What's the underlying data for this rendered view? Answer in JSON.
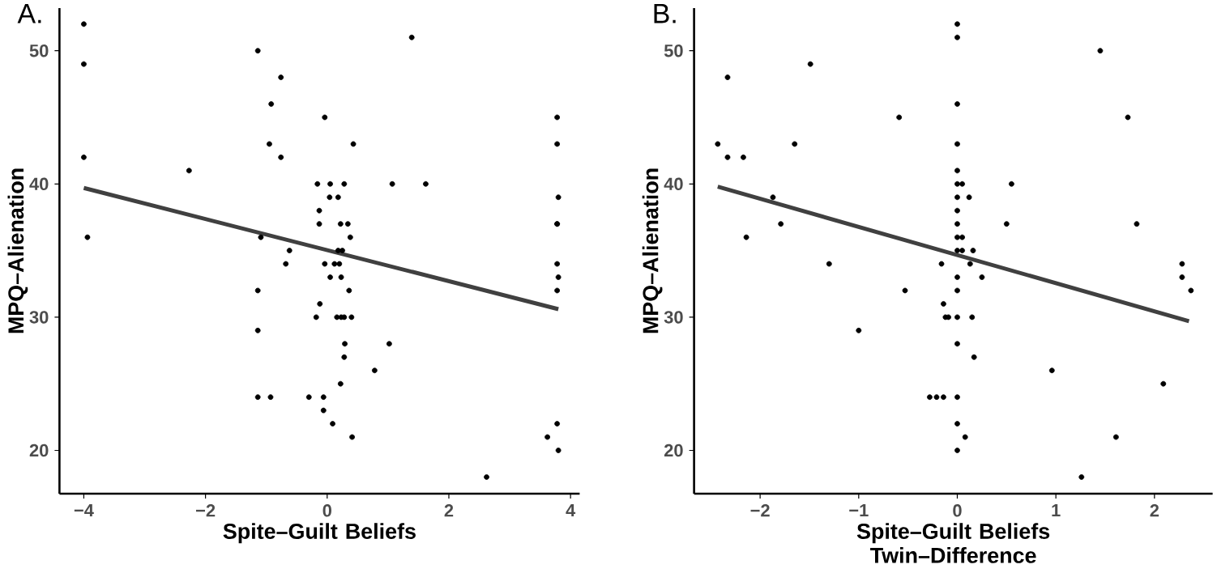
{
  "chart_data": [
    {
      "type": "scatter",
      "title": "A.",
      "xlabel": "Spite–Guilt Beliefs",
      "ylabel": "MPQ–Alienation",
      "xlim": [
        -4.4,
        4.15
      ],
      "ylim": [
        16.75,
        53.2
      ],
      "xticks": [
        {
          "value": -4,
          "label": "−4"
        },
        {
          "value": -2,
          "label": "−2"
        },
        0,
        2,
        4
      ],
      "yticks": [
        20,
        30,
        40,
        50
      ],
      "series": [
        {
          "type": "scatter",
          "marker": "circle",
          "color": "#000000",
          "x": [
            -4,
            -4,
            -4,
            -3.94,
            -2.27,
            -1.14,
            -0.76,
            -0.92,
            -0.95,
            -0.76,
            -1.09,
            -0.62,
            -0.68,
            -1.14,
            -1.14,
            -1.14,
            -0.93,
            -0.3,
            1.39,
            -0.04,
            0.43,
            3.78,
            3.78,
            -0.16,
            0.05,
            0.28,
            1.07,
            1.62,
            0.04,
            0.18,
            -0.13,
            -0.13,
            0.22,
            0.34,
            0.38,
            0.18,
            0.25,
            -0.04,
            0.12,
            0.2,
            0.05,
            0.23,
            0.36,
            -0.12,
            -0.18,
            0.16,
            0.23,
            0.28,
            0.4,
            0.29,
            1.02,
            0.28,
            0.78,
            0.22,
            -0.06,
            -0.06,
            0.09,
            0.41,
            3.8,
            3.78,
            3.78,
            3.78,
            3.8,
            3.78,
            2.62,
            3.78,
            3.62,
            3.8
          ],
          "values": [
            52,
            49,
            42,
            36,
            41,
            50,
            48,
            46,
            43,
            42,
            36,
            35,
            34,
            32,
            29,
            24,
            24,
            24,
            51,
            45,
            43,
            45,
            43,
            40,
            40,
            40,
            40,
            40,
            39,
            39,
            38,
            37,
            37,
            37,
            36,
            35,
            35,
            34,
            34,
            34,
            33,
            33,
            32,
            31,
            30,
            30,
            30,
            30,
            30,
            28,
            28,
            27,
            26,
            25,
            24,
            23,
            22,
            21,
            39,
            37,
            37,
            34,
            33,
            32,
            18,
            22,
            21,
            20
          ]
        },
        {
          "type": "line",
          "color": "#404040",
          "x": [
            -4,
            3.8
          ],
          "values": [
            39.7,
            30.6
          ]
        }
      ]
    },
    {
      "type": "scatter",
      "title": "B.",
      "xlabel": "Spite–Guilt Beliefs Twin–Difference",
      "ylabel": "MPQ–Alienation",
      "xlim": [
        -2.67,
        2.59
      ],
      "ylim": [
        16.75,
        53.2
      ],
      "xticks": [
        {
          "value": -2,
          "label": "−2"
        },
        {
          "value": -1,
          "label": "−1"
        },
        0,
        1,
        2
      ],
      "yticks": [
        20,
        30,
        40,
        50
      ],
      "series": [
        {
          "type": "scatter",
          "marker": "circle",
          "color": "#000000",
          "x": [
            -2.43,
            -2.33,
            -2.33,
            -2.17,
            -2.14,
            -1.87,
            -1.79,
            -1.65,
            -1.49,
            -1.3,
            -1.0,
            -0.59,
            -0.53,
            0,
            0,
            0,
            0,
            0,
            0,
            0,
            0,
            0,
            0,
            0,
            0,
            0,
            0,
            0,
            0,
            0,
            0,
            0.05,
            0.12,
            0.05,
            0.05,
            0.16,
            -0.16,
            0.13,
            0.25,
            -0.14,
            -0.12,
            -0.09,
            0.15,
            0.17,
            -0.28,
            -0.21,
            -0.14,
            0.08,
            0.5,
            0.55,
            0.96,
            1.26,
            1.45,
            1.61,
            1.73,
            1.82,
            2.09,
            2.28,
            2.28,
            2.37
          ],
          "values": [
            43,
            48,
            42,
            42,
            36,
            39,
            37,
            43,
            49,
            34,
            29,
            45,
            32,
            52,
            51,
            46,
            43,
            41,
            40,
            39,
            38,
            37,
            36,
            35,
            33,
            32,
            30,
            28,
            24,
            22,
            20,
            40,
            39,
            36,
            35,
            35,
            34,
            34,
            33,
            31,
            30,
            30,
            30,
            27,
            24,
            24,
            24,
            21,
            37,
            40,
            26,
            18,
            50,
            21,
            45,
            37,
            25,
            34,
            33,
            32
          ]
        },
        {
          "type": "line",
          "color": "#404040",
          "x": [
            -2.43,
            2.35
          ],
          "values": [
            39.8,
            29.7
          ]
        }
      ]
    }
  ]
}
